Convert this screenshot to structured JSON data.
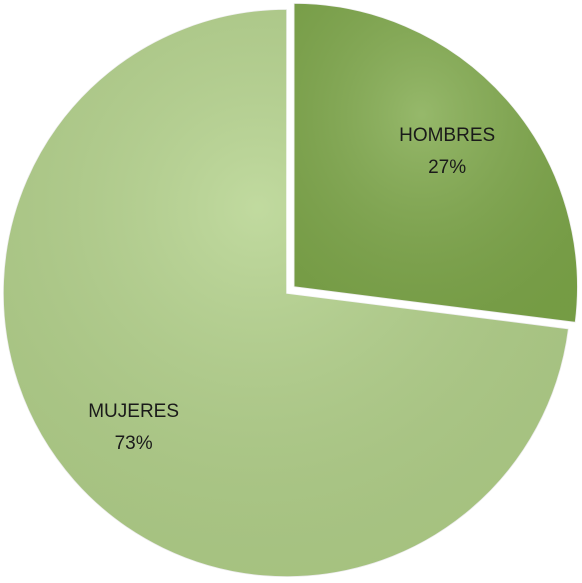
{
  "chart_data": {
    "type": "pie",
    "categories": [
      "HOMBRES",
      "MUJERES"
    ],
    "values": [
      27,
      73
    ],
    "value_labels": [
      "27%",
      "73%"
    ],
    "colors": [
      "#7fa94a",
      "#b3d28a"
    ],
    "exploded": [
      true,
      false
    ]
  }
}
